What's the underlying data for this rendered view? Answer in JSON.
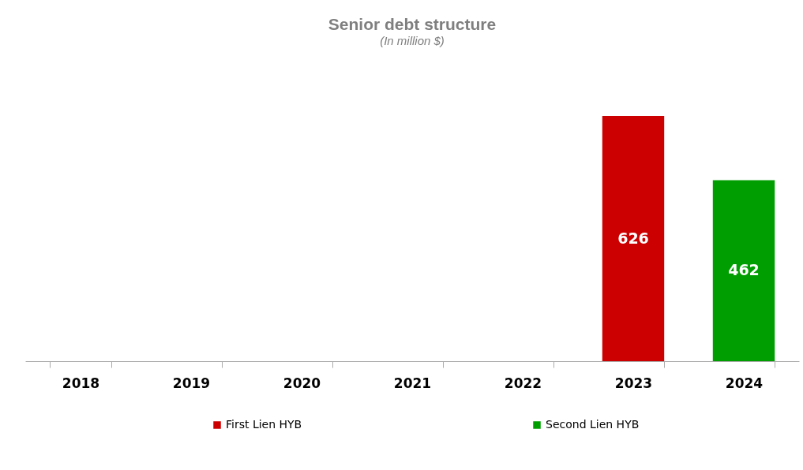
{
  "chart_data": {
    "type": "bar",
    "title": "Senior debt structure",
    "subtitle": "(In million $)",
    "categories": [
      "2018",
      "2019",
      "2020",
      "2021",
      "2022",
      "2023",
      "2024"
    ],
    "data_labels": true,
    "legend": "bottom",
    "grid": false,
    "series": [
      {
        "name": "First Lien HYB",
        "color": "#cc0000",
        "values": [
          null,
          null,
          null,
          null,
          null,
          626,
          null
        ]
      },
      {
        "name": "Second Lien HYB",
        "color": "#009e00",
        "values": [
          null,
          null,
          null,
          null,
          null,
          null,
          462
        ]
      }
    ]
  }
}
